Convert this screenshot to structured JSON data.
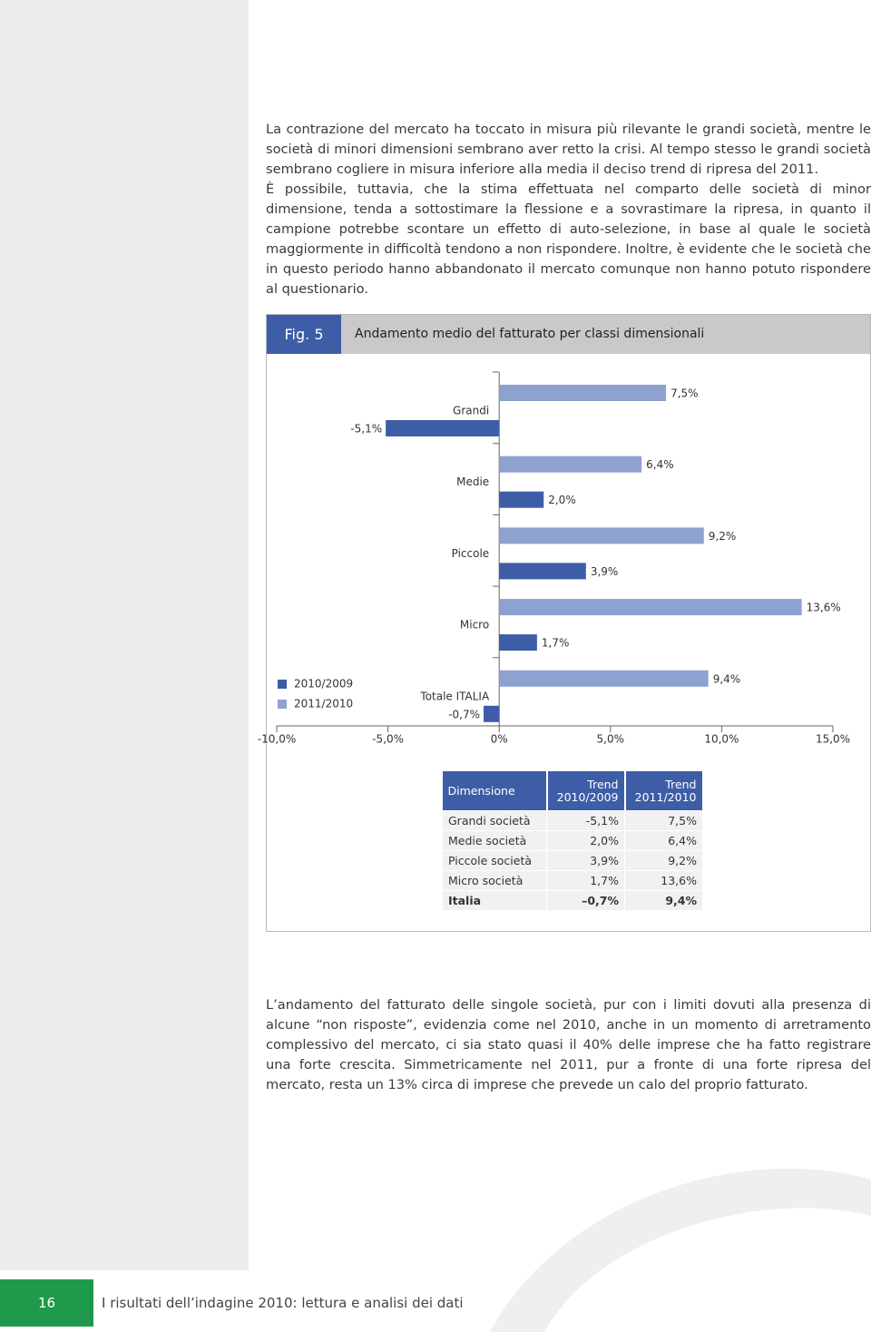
{
  "paragraphs": [
    "La contrazione del mercato ha toccato in misura più rilevante le grandi società, mentre le società di minori dimensioni sembrano aver retto la crisi. Al tempo stesso le grandi società sembrano cogliere in misura inferiore alla media il deciso trend di ripresa del 2011.",
    "È possibile, tuttavia, che la stima effettuata nel comparto delle società di minor dimensione, tenda a sottostimare la flessione e a sovrastimare la ripresa, in quanto il campione potrebbe scontare un effetto di auto-selezione, in base al quale le società maggiormente in difficoltà tendono a non rispondere. Inoltre, è evidente che le società che in questo periodo hanno abbandonato il mercato comunque non hanno potuto rispondere al questionario."
  ],
  "figure": {
    "label": "Fig. 5",
    "title": "Andamento medio del fatturato per classi dimensionali"
  },
  "chart_data": {
    "type": "hbar",
    "categories": [
      "Grandi",
      "Medie",
      "Piccole",
      "Micro",
      "Totale ITALIA"
    ],
    "series": [
      {
        "name": "2010/2009",
        "color": "#3d5ea6",
        "values": [
          -5.1,
          2.0,
          3.9,
          1.7,
          -0.7
        ],
        "value_labels": [
          "-5,1%",
          "2,0%",
          "3,9%",
          "1,7%",
          "-0,7%"
        ]
      },
      {
        "name": "2011/2010",
        "color": "#8ea2cf",
        "values": [
          7.5,
          6.4,
          9.2,
          13.6,
          9.4
        ],
        "value_labels": [
          "7,5%",
          "6,4%",
          "9,2%",
          "13,6%",
          "9,4%"
        ]
      }
    ],
    "xlim": [
      -10,
      15
    ],
    "xticks": [
      {
        "value": -10,
        "label": "-10,0%"
      },
      {
        "value": -5,
        "label": "-5,0%"
      },
      {
        "value": 0,
        "label": "0%"
      },
      {
        "value": 5,
        "label": "5,0%"
      },
      {
        "value": 10,
        "label": "10,0%"
      },
      {
        "value": 15,
        "label": "15,0%"
      }
    ],
    "legend": "lower left"
  },
  "table": {
    "header": [
      "Dimensione",
      "Trend 2010/2009",
      "Trend 2011/2010"
    ],
    "rows": [
      [
        "Grandi società",
        "-5,1%",
        "7,5%"
      ],
      [
        "Medie società",
        "2,0%",
        "6,4%"
      ],
      [
        "Piccole società",
        "3,9%",
        "9,2%"
      ],
      [
        "Micro società",
        "1,7%",
        "13,6%"
      ],
      [
        "Italia",
        "–0,7%",
        "9,4%"
      ]
    ]
  },
  "closing_paragraph": "L’andamento del fatturato delle singole società, pur con i limiti dovuti alla presenza di alcune “non risposte”, evidenzia come nel 2010, anche in un momento di arretramento complessivo del mercato, ci sia stato quasi il 40% delle imprese che ha fatto registrare una forte crescita. Simmetricamente nel 2011, pur a fronte di una forte ripresa del mercato, resta un 13% circa di imprese che prevede un calo del proprio fatturato.",
  "footer": {
    "page_number": "16",
    "text": "I risultati dell’indagine 2010: lettura e analisi dei dati"
  }
}
